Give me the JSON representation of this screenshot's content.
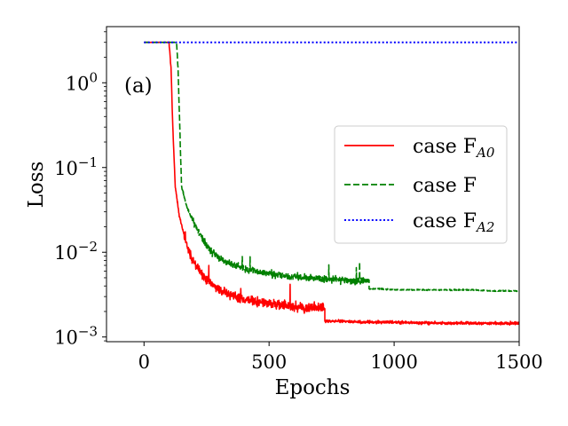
{
  "chart_data": {
    "type": "line",
    "xlabel": "Epochs",
    "ylabel": "Loss",
    "annotation": "(a)",
    "xlim": [
      -150,
      1500
    ],
    "ylim": [
      0.00088,
      4.6
    ],
    "yscale": "log",
    "grid": false,
    "legend_position": "center-right",
    "x_ticks": [
      {
        "value": 0,
        "label": "0"
      },
      {
        "value": 500,
        "label": "500"
      },
      {
        "value": 1000,
        "label": "1000"
      },
      {
        "value": 1500,
        "label": "1500"
      }
    ],
    "y_ticks": [
      {
        "value": 1,
        "base": "10",
        "exp": "0"
      },
      {
        "value": 0.1,
        "base": "10",
        "exp": "−1"
      },
      {
        "value": 0.01,
        "base": "10",
        "exp": "−2"
      },
      {
        "value": 0.001,
        "base": "10",
        "exp": "−3"
      }
    ],
    "series": [
      {
        "name": "case F",
        "name_sub": "A0",
        "color": "#ff0000",
        "dash": "solid",
        "noise": [
          0.05,
          0.16,
          0.05
        ],
        "x": [
          0,
          100,
          108,
          115,
          125,
          140,
          160,
          180,
          200,
          230,
          260,
          300,
          350,
          400,
          450,
          500,
          550,
          600,
          650,
          700,
          723,
          724,
          760,
          800,
          900,
          1000,
          1100,
          1200,
          1300,
          1400,
          1500
        ],
        "y": [
          3.0,
          3.0,
          1.5,
          0.3,
          0.06,
          0.028,
          0.016,
          0.01,
          0.0075,
          0.0055,
          0.0045,
          0.0036,
          0.0031,
          0.0028,
          0.0026,
          0.0025,
          0.0024,
          0.0023,
          0.0022,
          0.0022,
          0.0022,
          0.00155,
          0.00155,
          0.00153,
          0.0015,
          0.00149,
          0.00147,
          0.00146,
          0.00145,
          0.00145,
          0.00145
        ]
      },
      {
        "name": "case F",
        "name_sub": "",
        "color": "#008000",
        "dash": "dashed",
        "noise": [
          0.05,
          0.12,
          0.02
        ],
        "x": [
          0,
          130,
          136,
          143,
          150,
          170,
          200,
          230,
          260,
          300,
          350,
          400,
          450,
          500,
          550,
          600,
          650,
          700,
          750,
          800,
          850,
          900,
          901,
          950,
          1000,
          1100,
          1200,
          1300,
          1400,
          1500
        ],
        "y": [
          3.0,
          3.0,
          1.5,
          0.3,
          0.06,
          0.035,
          0.022,
          0.015,
          0.011,
          0.0085,
          0.0072,
          0.0064,
          0.0059,
          0.0056,
          0.0053,
          0.0051,
          0.005,
          0.0049,
          0.0048,
          0.0047,
          0.0046,
          0.0046,
          0.0037,
          0.0037,
          0.0036,
          0.0036,
          0.0036,
          0.0036,
          0.0035,
          0.0035
        ]
      },
      {
        "name": "case F",
        "name_sub": "A2",
        "color": "#0000ff",
        "dash": "dotted",
        "noise": [
          0.0,
          0.0,
          0.0
        ],
        "x": [
          0,
          1500
        ],
        "y": [
          3.0,
          3.0
        ]
      }
    ]
  }
}
